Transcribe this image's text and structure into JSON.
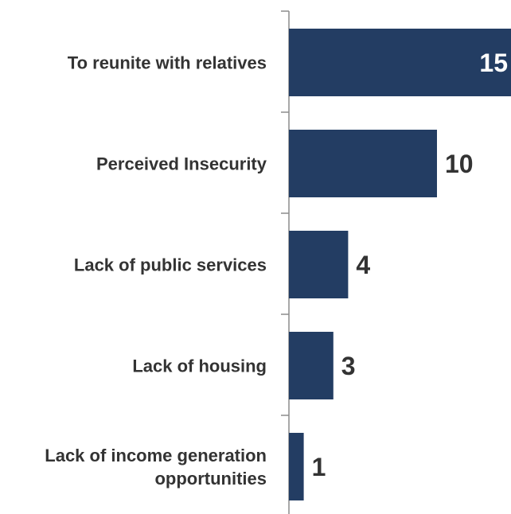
{
  "chart_data": {
    "type": "bar",
    "orientation": "horizontal",
    "categories": [
      [
        "To reunite with relatives"
      ],
      [
        "Perceived Insecurity"
      ],
      [
        "Lack of public services"
      ],
      [
        "Lack of housing"
      ],
      [
        "Lack of income generation",
        "opportunities"
      ]
    ],
    "values": [
      15,
      10,
      4,
      3,
      1
    ],
    "data_labels": [
      "15",
      "10",
      "4",
      "3",
      "1"
    ],
    "xlim": [
      0,
      15
    ],
    "grid": false,
    "legend": "none",
    "colors": {
      "bar": "#233d63",
      "label_inside": "#ffffff",
      "label_outside": "#333333",
      "axis": "#8c8c8c",
      "category_text": "#333333"
    }
  }
}
